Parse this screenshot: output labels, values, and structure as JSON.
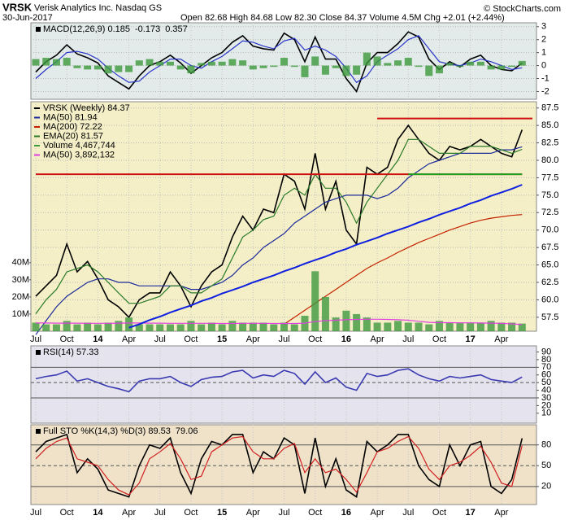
{
  "header": {
    "symbol": "VRSK",
    "name": "Verisk Analytics Inc. Nasdaq GS",
    "date": "30-Jun-2017",
    "quote": "Open 82.68 High 84.68 Low 82.30 Close 84.37 Volume 4.5M Chg +2.01 (+2.44%)",
    "credit": "© StockCharts.com"
  },
  "chart_data": [
    {
      "type": "line",
      "background": "#e2ebea",
      "legend": "top-left",
      "grid": true,
      "ylim": [
        -2.6,
        3.3
      ],
      "yticks": [
        -2,
        -1,
        0,
        1,
        2,
        3
      ],
      "series": [
        {
          "name": "MACD(12,26,9) 0.185",
          "color": "#000000",
          "values": [
            -0.5,
            0.3,
            0.8,
            1.6,
            0.9,
            0.6,
            0.2,
            -0.8,
            -1.3,
            -1.8,
            -0.8,
            0,
            0.3,
            0.8,
            0.2,
            -0.6,
            0,
            0.6,
            1,
            1.8,
            2.3,
            1.5,
            1.3,
            1.2,
            2.5,
            2,
            0.3,
            2.2,
            0.5,
            0.5,
            -1,
            -2,
            0.2,
            1,
            1,
            1.7,
            2.6,
            2.2,
            0.5,
            -0.3,
            0.3,
            -0.1,
            0.5,
            0.8,
            0,
            -0.3,
            -0.4,
            0.185
          ]
        },
        {
          "name": "-0.173",
          "color": "#2a35c8",
          "values": [
            -1,
            -0.3,
            0.3,
            1,
            1.1,
            0.9,
            0.5,
            -0.2,
            -0.8,
            -1.3,
            -1.2,
            -0.5,
            0,
            0.5,
            0.5,
            0,
            -0.2,
            0.3,
            0.7,
            1.3,
            1.9,
            1.8,
            1.5,
            1.3,
            1.9,
            2.1,
            1.2,
            1.5,
            1.2,
            0.7,
            -0.2,
            -1.3,
            -0.8,
            0.3,
            0.8,
            1.3,
            2,
            2.3,
            1.3,
            0.3,
            0.1,
            0,
            0.2,
            0.5,
            0.3,
            0,
            -0.3,
            -0.173
          ]
        },
        {
          "name": "0.357",
          "color": "#3c9a3c",
          "style": "histogram",
          "values": [
            0.5,
            0.6,
            0.5,
            0.6,
            -0.2,
            -0.3,
            -0.3,
            -0.6,
            -0.5,
            -0.5,
            0.4,
            0.5,
            0.3,
            0.3,
            -0.3,
            -0.6,
            0.2,
            0.3,
            0.3,
            0.5,
            0.4,
            -0.3,
            -0.2,
            -0.1,
            0.6,
            -0.1,
            -0.9,
            0.7,
            -0.7,
            -0.2,
            -0.8,
            -0.7,
            1,
            0.7,
            0.2,
            0.4,
            0.6,
            -0.1,
            -0.8,
            -0.6,
            0.2,
            -0.1,
            0.3,
            0.3,
            -0.3,
            -0.3,
            -0.1,
            0.357
          ]
        }
      ]
    },
    {
      "type": "line",
      "background": "#f4efc6",
      "legend": "top-left",
      "grid": true,
      "categories": [
        "Jul",
        null,
        null,
        "Oct",
        null,
        null,
        "14",
        null,
        null,
        "Apr",
        null,
        null,
        "Jul",
        null,
        null,
        "Oct",
        null,
        null,
        "15",
        null,
        null,
        "Apr",
        null,
        null,
        "Jul",
        null,
        null,
        "Oct",
        null,
        null,
        "16",
        null,
        null,
        "Apr",
        null,
        null,
        "Jul",
        null,
        null,
        "Oct",
        null,
        null,
        "17",
        null,
        null,
        "Apr",
        null,
        null
      ],
      "ylim": [
        55.5,
        88.4
      ],
      "yticks": [
        57.5,
        {
          "value": 60,
          "label": "60.0"
        },
        62.5,
        {
          "value": 65,
          "label": "65.0"
        },
        67.5,
        {
          "value": 70,
          "label": "70.0"
        },
        72.5,
        {
          "value": 75,
          "label": "75.0"
        },
        77.5,
        {
          "value": 80,
          "label": "80.0"
        },
        82.5,
        {
          "value": 85,
          "label": "85.0"
        },
        87.5
      ],
      "y2lim": [
        0,
        134000000
      ],
      "y2ticks": [
        {
          "value": 10000000,
          "label": "10M"
        },
        {
          "value": 20000000,
          "label": "20M"
        },
        {
          "value": 30000000,
          "label": "30M"
        },
        {
          "value": 40000000,
          "label": "40M"
        }
      ],
      "series": [
        {
          "name": "VRSK (Weekly) 84.37",
          "color": "#000000",
          "values": [
            60.5,
            62,
            63.5,
            68,
            64,
            65.5,
            63,
            60,
            59,
            57.5,
            60,
            61,
            61,
            64,
            62,
            59,
            62,
            64,
            65,
            69,
            72,
            70,
            73,
            72.5,
            78,
            77,
            73,
            81,
            73,
            77,
            70,
            68,
            79,
            78,
            79,
            83,
            85,
            83,
            81,
            80,
            82,
            81.5,
            82,
            83,
            82,
            81,
            80.5,
            84.37
          ]
        },
        {
          "name": "MA(50) 81.94",
          "color": "#1c2a9c",
          "values": [
            55,
            57,
            59,
            60.5,
            61.5,
            62.5,
            63,
            63,
            62.5,
            62.5,
            62,
            62,
            62,
            62,
            62,
            61.5,
            61.5,
            62,
            62.5,
            63.5,
            65,
            66,
            67.5,
            68.5,
            69.5,
            71,
            72,
            73,
            74,
            74.5,
            75,
            75,
            75,
            74.5,
            75,
            76,
            77.5,
            78.5,
            79.5,
            80,
            80.5,
            81,
            81,
            81,
            81,
            81.5,
            81.5,
            81.94
          ]
        },
        {
          "name": "MA(200) 72.22",
          "color": "#c42000",
          "values": [
            null,
            null,
            null,
            null,
            null,
            null,
            null,
            null,
            null,
            null,
            null,
            null,
            null,
            null,
            null,
            null,
            null,
            null,
            null,
            null,
            null,
            null,
            null,
            null,
            56.5,
            57.5,
            58.5,
            59.5,
            60.5,
            61.5,
            62.5,
            63.5,
            64.5,
            65.3,
            66,
            66.8,
            67.5,
            68.2,
            68.8,
            69.4,
            70,
            70.5,
            71,
            71.4,
            71.7,
            71.9,
            72.1,
            72.22
          ]
        },
        {
          "name": "EMA(20) 81.57",
          "color": "#2a7a2a",
          "values": [
            58,
            60,
            61.5,
            64,
            64.5,
            65,
            64,
            62.5,
            61,
            59.5,
            59.5,
            60,
            60.5,
            62,
            62,
            61,
            61,
            62,
            63,
            66,
            69,
            70,
            71.5,
            72,
            75,
            76,
            75,
            78,
            76,
            76,
            74,
            71,
            74,
            76,
            78,
            80,
            83,
            83,
            82,
            81,
            81,
            81,
            82,
            82,
            82,
            81.5,
            81,
            81.57
          ]
        },
        {
          "name": "Volume 4,467,744",
          "color": "#3e9a3e",
          "style": "bar",
          "axis": "y2",
          "values": [
            5000000,
            4000000,
            4000000,
            6000000,
            4000000,
            5000000,
            4000000,
            5000000,
            6000000,
            8000000,
            4000000,
            4000000,
            4000000,
            4000000,
            4000000,
            6000000,
            4000000,
            5000000,
            4000000,
            6000000,
            5000000,
            5000000,
            5000000,
            4000000,
            5000000,
            4000000,
            9000000,
            35000000,
            20000000,
            8000000,
            12000000,
            10000000,
            8000000,
            5000000,
            5000000,
            6000000,
            5000000,
            5000000,
            4000000,
            6000000,
            5000000,
            5000000,
            5000000,
            5000000,
            6000000,
            5000000,
            5000000,
            4467744
          ]
        },
        {
          "name": "MA(50) 3,892,132",
          "color": "#e040e0",
          "axis": "y2",
          "values": [
            4800000,
            4800000,
            4700000,
            4700000,
            4700000,
            4600000,
            4600000,
            4600000,
            4700000,
            4800000,
            4800000,
            4700000,
            4700000,
            4600000,
            4600000,
            4600000,
            4600000,
            4600000,
            4500000,
            4500000,
            4600000,
            4600000,
            4600000,
            4500000,
            4500000,
            4500000,
            4700000,
            5600000,
            6200000,
            6400000,
            6700000,
            6900000,
            7000000,
            7000000,
            6900000,
            6700000,
            6400000,
            5800000,
            5200000,
            5000000,
            5000000,
            4900000,
            4900000,
            4800000,
            4700000,
            4600000,
            4300000,
            3892132
          ]
        }
      ],
      "trendlines": [
        {
          "color": "#d01010",
          "values": [
            78,
            78,
            78,
            78,
            78,
            78,
            78,
            78,
            78,
            78,
            78,
            78,
            78,
            78,
            78,
            78,
            78,
            78,
            78,
            78,
            78,
            78,
            78,
            78,
            78,
            78,
            78,
            78,
            78,
            78,
            78,
            78,
            78,
            78,
            78,
            78,
            78,
            78,
            78,
            78,
            78,
            78,
            78,
            78,
            78,
            78,
            78,
            78
          ]
        },
        {
          "color": "#d01010",
          "values": [
            null,
            null,
            null,
            null,
            null,
            null,
            null,
            null,
            null,
            null,
            null,
            null,
            null,
            null,
            null,
            null,
            null,
            null,
            null,
            null,
            null,
            null,
            null,
            null,
            null,
            null,
            null,
            null,
            null,
            null,
            null,
            null,
            null,
            86,
            86,
            86,
            86,
            86,
            86,
            86,
            86,
            86,
            86,
            86,
            86,
            86,
            86,
            86,
            86
          ]
        },
        {
          "color": "#20a020",
          "values": [
            null,
            null,
            null,
            null,
            null,
            null,
            null,
            null,
            null,
            null,
            null,
            null,
            null,
            null,
            null,
            null,
            null,
            null,
            null,
            null,
            null,
            null,
            null,
            null,
            null,
            null,
            null,
            null,
            null,
            null,
            null,
            null,
            null,
            null,
            null,
            null,
            78,
            78,
            78,
            78,
            78,
            78,
            78,
            78,
            78,
            78,
            78,
            78
          ]
        },
        {
          "color": "#1020e0",
          "values": [
            null,
            null,
            null,
            null,
            null,
            null,
            null,
            null,
            null,
            56,
            56.5,
            57.1,
            57.6,
            58.2,
            58.7,
            59.2,
            59.8,
            60.3,
            60.9,
            61.4,
            61.9,
            62.5,
            63,
            63.5,
            64.1,
            64.6,
            65.2,
            65.7,
            66.2,
            66.8,
            67.3,
            67.9,
            68.4,
            68.9,
            69.5,
            70,
            70.5,
            71.1,
            71.6,
            72.2,
            72.7,
            73.2,
            73.8,
            74.3,
            74.9,
            75.4,
            75.9,
            76.5
          ]
        }
      ]
    },
    {
      "type": "line",
      "background": "#e4e3ee",
      "legend": "top-left",
      "grid": false,
      "ylim": [
        -3,
        98
      ],
      "yticks": [
        10,
        20,
        30,
        40,
        50,
        60,
        70,
        80,
        90
      ],
      "grid_levels": [
        30,
        50,
        70
      ],
      "series": [
        {
          "name": "RSI(14) 57.33",
          "color": "#3a3ab0",
          "values": [
            55,
            58,
            60,
            65,
            52,
            55,
            50,
            45,
            42,
            38,
            52,
            55,
            55,
            58,
            50,
            45,
            54,
            57,
            58,
            64,
            66,
            56,
            60,
            58,
            66,
            62,
            48,
            64,
            50,
            56,
            44,
            40,
            62,
            58,
            60,
            66,
            68,
            60,
            55,
            52,
            58,
            56,
            58,
            60,
            54,
            52,
            50,
            57.33
          ]
        }
      ]
    },
    {
      "type": "line",
      "background": "#efe2c9",
      "legend": "top-left",
      "grid": false,
      "categories": [
        "Jul",
        null,
        null,
        "Oct",
        null,
        null,
        "14",
        null,
        null,
        "Apr",
        null,
        null,
        "Jul",
        null,
        null,
        "Oct",
        null,
        null,
        "15",
        null,
        null,
        "Apr",
        null,
        null,
        "Jul",
        null,
        null,
        "Oct",
        null,
        null,
        "16",
        null,
        null,
        "Apr",
        null,
        null,
        "Jul",
        null,
        null,
        "Oct",
        null,
        null,
        "17",
        null,
        null,
        "Apr",
        null,
        null
      ],
      "ylim": [
        -6,
        109
      ],
      "yticks": [
        20,
        50,
        80
      ],
      "grid_levels": [
        20,
        50,
        80
      ],
      "series": [
        {
          "name": "Full STO %K(14,3) %D(3) 89.53",
          "color": "#000000",
          "values": [
            70,
            85,
            90,
            95,
            40,
            60,
            45,
            15,
            10,
            5,
            50,
            80,
            75,
            90,
            40,
            10,
            60,
            85,
            80,
            95,
            95,
            40,
            70,
            60,
            90,
            80,
            10,
            90,
            20,
            60,
            15,
            5,
            85,
            70,
            80,
            95,
            95,
            50,
            30,
            20,
            80,
            50,
            80,
            85,
            20,
            10,
            30,
            89.53
          ]
        },
        {
          "name": "79.06",
          "color": "#d02020",
          "values": [
            60,
            75,
            85,
            90,
            60,
            55,
            50,
            30,
            15,
            8,
            25,
            60,
            70,
            82,
            60,
            30,
            35,
            70,
            80,
            90,
            92,
            70,
            60,
            60,
            75,
            82,
            40,
            60,
            40,
            45,
            30,
            12,
            40,
            70,
            75,
            85,
            92,
            75,
            45,
            30,
            50,
            55,
            65,
            78,
            55,
            25,
            20,
            79.06
          ]
        }
      ]
    }
  ]
}
